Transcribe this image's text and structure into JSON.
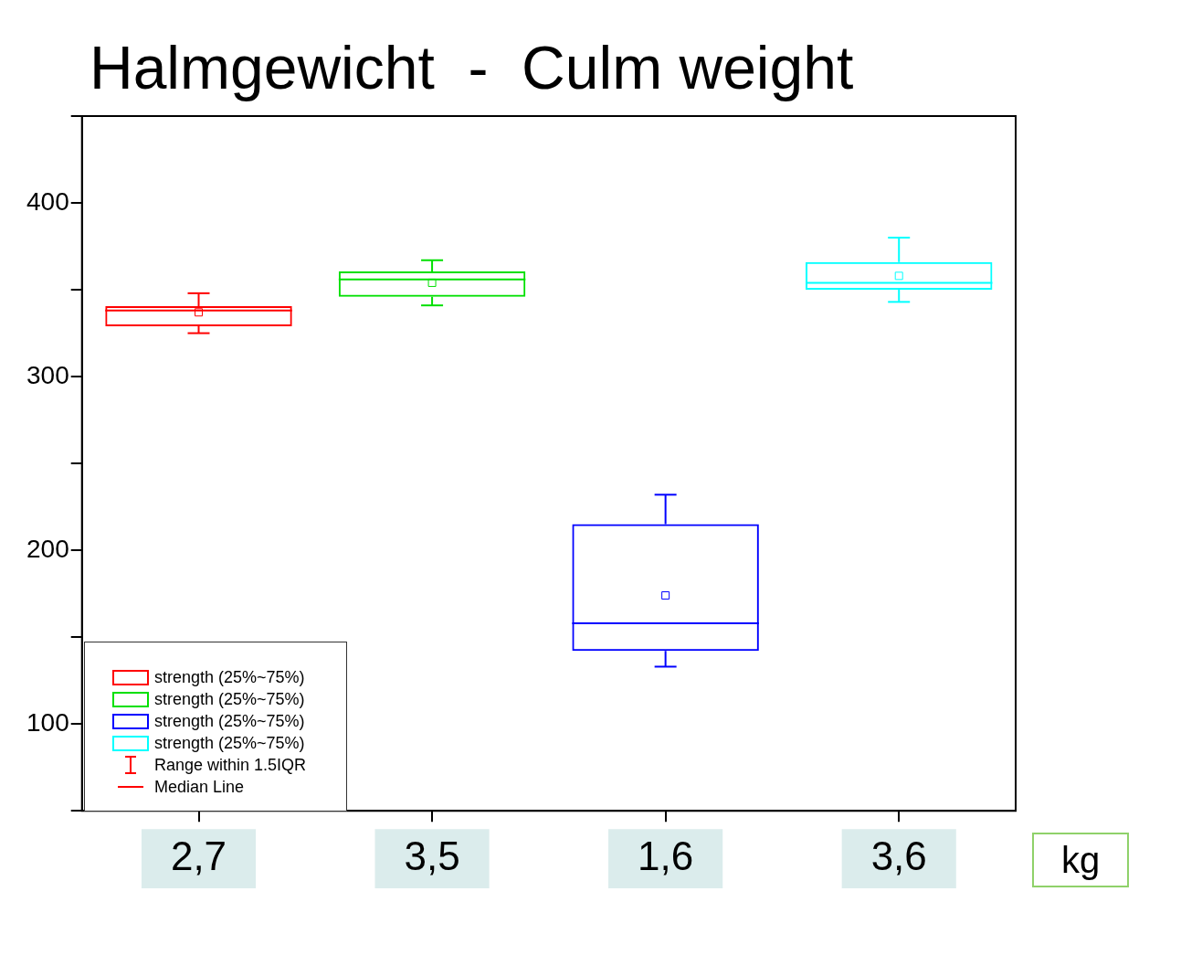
{
  "chart_data": {
    "type": "box",
    "title": "Halmgewicht  -  Culm weight",
    "xlabel": "kg",
    "categories": [
      "2,7",
      "3,5",
      "1,6",
      "3,6"
    ],
    "series": [
      {
        "name": "strength (25%~75%)",
        "color": "#ff0000",
        "boxes": [
          {
            "low": 325,
            "q1": 329,
            "median": 338,
            "q3": 340.5,
            "high": 348,
            "mean": 337
          },
          null,
          null,
          null
        ]
      },
      {
        "name": "strength (25%~75%)",
        "color": "#00e000",
        "boxes": [
          null,
          {
            "low": 341,
            "q1": 346,
            "median": 356,
            "q3": 360.5,
            "high": 367,
            "mean": 354
          },
          null,
          null
        ]
      },
      {
        "name": "strength (25%~75%)",
        "color": "#0000ff",
        "boxes": [
          null,
          null,
          {
            "low": 133,
            "q1": 142,
            "median": 158,
            "q3": 215,
            "high": 232,
            "mean": 174
          },
          null
        ]
      },
      {
        "name": "strength (25%~75%)",
        "color": "#00ffff",
        "boxes": [
          null,
          null,
          null,
          {
            "low": 343,
            "q1": 350,
            "median": 354,
            "q3": 366,
            "high": 380,
            "mean": 358
          }
        ]
      }
    ],
    "annotations": [
      "Range within 1.5IQR",
      "Median Line"
    ],
    "ylim": [
      50,
      450
    ],
    "yticks": [
      {
        "value": 50,
        "label": null
      },
      100,
      {
        "value": 150,
        "label": null
      },
      200,
      {
        "value": 250,
        "label": null
      },
      300,
      {
        "value": 350,
        "label": null
      },
      400,
      {
        "value": 450,
        "label": null
      }
    ],
    "grid": false,
    "legend": "bottom left",
    "marker": "square"
  }
}
